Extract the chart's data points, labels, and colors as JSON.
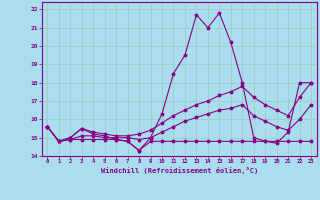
{
  "x": [
    0,
    1,
    2,
    3,
    4,
    5,
    6,
    7,
    8,
    9,
    10,
    11,
    12,
    13,
    14,
    15,
    16,
    17,
    18,
    19,
    20,
    21,
    22,
    23
  ],
  "windchill": [
    15.6,
    14.8,
    15.0,
    15.5,
    15.2,
    15.1,
    14.9,
    14.8,
    14.3,
    15.0,
    16.3,
    18.5,
    19.5,
    21.7,
    21.0,
    21.8,
    20.2,
    18.0,
    15.0,
    14.8,
    14.7,
    15.3,
    18.0,
    18.0
  ],
  "flat_line": [
    15.6,
    14.8,
    14.9,
    14.9,
    14.9,
    14.9,
    14.9,
    14.8,
    14.3,
    14.8,
    14.8,
    14.8,
    14.8,
    14.8,
    14.8,
    14.8,
    14.8,
    14.8,
    14.8,
    14.8,
    14.8,
    14.8,
    14.8,
    14.8
  ],
  "max_line": [
    15.6,
    14.8,
    15.0,
    15.5,
    15.3,
    15.2,
    15.1,
    15.1,
    15.2,
    15.4,
    15.8,
    16.2,
    16.5,
    16.8,
    17.0,
    17.3,
    17.5,
    17.8,
    17.2,
    16.8,
    16.5,
    16.2,
    17.2,
    18.0
  ],
  "avg_line": [
    15.6,
    14.8,
    14.9,
    15.1,
    15.1,
    15.0,
    15.0,
    15.0,
    14.9,
    15.0,
    15.3,
    15.6,
    15.9,
    16.1,
    16.3,
    16.5,
    16.6,
    16.8,
    16.2,
    15.9,
    15.6,
    15.4,
    16.0,
    16.8
  ],
  "color": "#880088",
  "bg_color": "#aaddee",
  "grid_color": "#99ccbb",
  "xlabel": "Windchill (Refroidissement éolien,°C)",
  "ylim": [
    14,
    22.4
  ],
  "xlim": [
    -0.5,
    23.5
  ],
  "yticks": [
    14,
    15,
    16,
    17,
    18,
    19,
    20,
    21,
    22
  ],
  "xticks": [
    0,
    1,
    2,
    3,
    4,
    5,
    6,
    7,
    8,
    9,
    10,
    11,
    12,
    13,
    14,
    15,
    16,
    17,
    18,
    19,
    20,
    21,
    22,
    23
  ]
}
